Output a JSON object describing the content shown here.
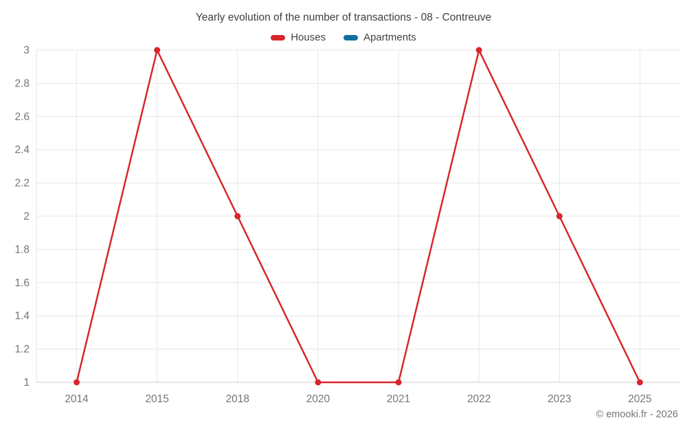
{
  "header": {
    "title": "Yearly evolution of the number of transactions - 08 - Contreuve"
  },
  "legend": {
    "items": [
      {
        "label": "Houses",
        "color": "#d8262c"
      },
      {
        "label": "Apartments",
        "color": "#136e9f"
      }
    ]
  },
  "footer": {
    "copyright": "© emooki.fr - 2026"
  },
  "chart_data": {
    "type": "line",
    "title": "Yearly evolution of the number of transactions - 08 - Contreuve",
    "categories": [
      "2014",
      "2015",
      "2018",
      "2020",
      "2021",
      "2022",
      "2023",
      "2025"
    ],
    "series": [
      {
        "name": "Houses",
        "color": "#d8262c",
        "values": [
          1,
          3,
          2,
          1,
          1,
          3,
          2,
          1
        ]
      },
      {
        "name": "Apartments",
        "color": "#136e9f",
        "values": []
      }
    ],
    "xlabel": "",
    "ylabel": "",
    "ylim": [
      1,
      3
    ],
    "y_ticks": [
      1,
      1.2,
      1.4,
      1.6,
      1.8,
      2,
      2.2,
      2.4,
      2.6,
      2.8,
      3
    ],
    "grid": true,
    "legend_position": "top",
    "colors": {
      "grid_line": "#e6e6e6",
      "axis_line": "#cccccc",
      "tick_label": "#757575"
    }
  }
}
